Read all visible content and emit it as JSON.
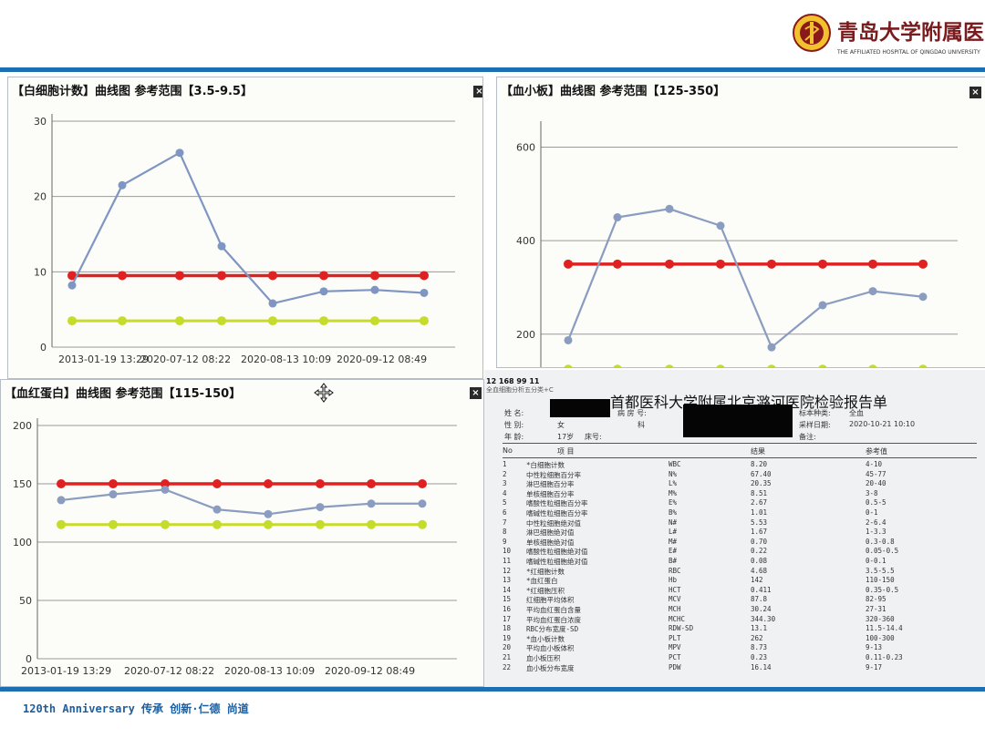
{
  "header": {
    "logo_cn": "青岛大学附属医院",
    "logo_en": "THE AFFILIATED HOSPITAL OF QINGDAO UNIVERSITY"
  },
  "footer": {
    "text": "120th  Anniversary  传承 创新·仁德 尚道"
  },
  "panels": [
    {
      "title": "【白细胞计数】曲线图  参考范围【3.5-9.5】",
      "close": "×"
    },
    {
      "title": "【血小板】曲线图  参考范围【125-350】",
      "close": "×"
    },
    {
      "title": "【血红蛋白】曲线图  参考范围【115-150】",
      "close": "×"
    }
  ],
  "chart_data": [
    {
      "type": "line",
      "title": "【白细胞计数】曲线图  参考范围【3.5-9.5】",
      "ylim": [
        0,
        30
      ],
      "yticks": [
        0,
        10,
        20,
        30
      ],
      "x_tick_labels": [
        "2013-01-19 13:29",
        "2020-07-12 08:22",
        "2020-08-13 10:09",
        "2020-09-12 08:49"
      ],
      "series": [
        {
          "role": "measured",
          "color": "#7f95c2",
          "values": [
            8.2,
            21.5,
            25.8,
            13.4,
            5.8,
            7.4,
            7.6,
            7.2
          ]
        },
        {
          "role": "upper-limit",
          "color": "#e02121",
          "values": [
            9.5,
            9.5,
            9.5,
            9.5,
            9.5,
            9.5,
            9.5,
            9.5
          ]
        },
        {
          "role": "lower-limit",
          "color": "#c6dc2a",
          "values": [
            3.5,
            3.5,
            3.5,
            3.5,
            3.5,
            3.5,
            3.5,
            3.5
          ]
        }
      ]
    },
    {
      "type": "line",
      "title": "【血小板】曲线图  参考范围【125-350】",
      "ylim": [
        110,
        640
      ],
      "yticks": [
        200,
        400,
        600
      ],
      "x_tick_labels": [],
      "series": [
        {
          "role": "measured",
          "color": "#8a9cc0",
          "values": [
            187,
            450,
            468,
            432,
            172,
            262,
            292,
            280
          ]
        },
        {
          "role": "upper-limit",
          "color": "#e02121",
          "values": [
            350,
            350,
            350,
            350,
            350,
            350,
            350,
            350
          ]
        },
        {
          "role": "lower-limit",
          "color": "#c6dc2a",
          "values": [
            125,
            125,
            125,
            125,
            125,
            125,
            125,
            125
          ]
        }
      ]
    },
    {
      "type": "line",
      "title": "【血红蛋白】曲线图  参考范围【115-150】",
      "ylim": [
        0,
        200
      ],
      "yticks": [
        0,
        50,
        100,
        150,
        200
      ],
      "x_tick_labels": [
        "2013-01-19 13:29",
        "2020-07-12 08:22",
        "2020-08-13 10:09",
        "2020-09-12 08:49"
      ],
      "series": [
        {
          "role": "measured",
          "color": "#8a9cc0",
          "values": [
            136,
            141,
            145,
            128,
            124,
            130,
            133,
            133
          ]
        },
        {
          "role": "upper-limit",
          "color": "#e02121",
          "values": [
            150,
            150,
            150,
            150,
            150,
            150,
            150,
            150
          ]
        },
        {
          "role": "lower-limit",
          "color": "#c6dc2a",
          "values": [
            115,
            115,
            115,
            115,
            115,
            115,
            115,
            115
          ]
        }
      ]
    }
  ],
  "report": {
    "top_line": "12 168 99 11",
    "sub_line": "全血细胞分析五分类+C",
    "title": "首都医科大学附属北京潞河医院检验报告单",
    "info": {
      "name_label": "姓    名:",
      "sex_label": "性    别:",
      "sex_value": "女",
      "age_label": "年    龄:",
      "age_value": "17岁",
      "bed_label": "床号:",
      "ward_label": "病  房  号:",
      "dept_label": "科",
      "specimen_label": "标本种类:",
      "specimen_value": "全血",
      "collect_label": "采样日期:",
      "collect_value": "2020-10-21 10:10",
      "remark_label": "备注:"
    },
    "columns": [
      "No",
      "项    目",
      "结果",
      "参考值"
    ],
    "rows": [
      [
        "1",
        "*白细胞计数",
        "WBC",
        "8.20",
        "4-10"
      ],
      [
        "2",
        "中性粒细胞百分率",
        "N%",
        "67.40",
        "45-77"
      ],
      [
        "3",
        "淋巴细胞百分率",
        "L%",
        "20.35",
        "20-40"
      ],
      [
        "4",
        "单核细胞百分率",
        "M%",
        "8.51",
        "3-8"
      ],
      [
        "5",
        "嗜酸性粒细胞百分率",
        "E%",
        "2.67",
        "0.5-5"
      ],
      [
        "6",
        "嗜碱性粒细胞百分率",
        "B%",
        "1.01",
        "0-1"
      ],
      [
        "7",
        "中性粒细胞绝对值",
        "N#",
        "5.53",
        "2-6.4"
      ],
      [
        "8",
        "淋巴细胞绝对值",
        "L#",
        "1.67",
        "1-3.3"
      ],
      [
        "9",
        "单核细胞绝对值",
        "M#",
        "0.70",
        "0.3-0.8"
      ],
      [
        "10",
        "嗜酸性粒细胞绝对值",
        "E#",
        "0.22",
        "0.05-0.5"
      ],
      [
        "11",
        "嗜碱性粒细胞绝对值",
        "B#",
        "0.08",
        "0-0.1"
      ],
      [
        "12",
        "*红细胞计数",
        "RBC",
        "4.68",
        "3.5-5.5"
      ],
      [
        "13",
        "*血红蛋白",
        "Hb",
        "142",
        "110-150"
      ],
      [
        "14",
        "*红细胞压积",
        "HCT",
        "0.411",
        "0.35-0.5"
      ],
      [
        "15",
        "红细胞平均体积",
        "MCV",
        "87.8",
        "82-95"
      ],
      [
        "16",
        "平均血红蛋白含量",
        "MCH",
        "30.24",
        "27-31"
      ],
      [
        "17",
        "平均血红蛋白浓度",
        "MCHC",
        "344.30",
        "320-360"
      ],
      [
        "18",
        "RBC分布宽度-SD",
        "RDW-SD",
        "13.1",
        "11.5-14.4"
      ],
      [
        "19",
        "*血小板计数",
        "PLT",
        "262",
        "100-300"
      ],
      [
        "20",
        "平均血小板体积",
        "MPV",
        "8.73",
        "9-13"
      ],
      [
        "21",
        "血小板压积",
        "PCT",
        "0.23",
        "0.11-0.23"
      ],
      [
        "22",
        "血小板分布宽度",
        "PDW",
        "16.14",
        "9-17"
      ]
    ]
  }
}
